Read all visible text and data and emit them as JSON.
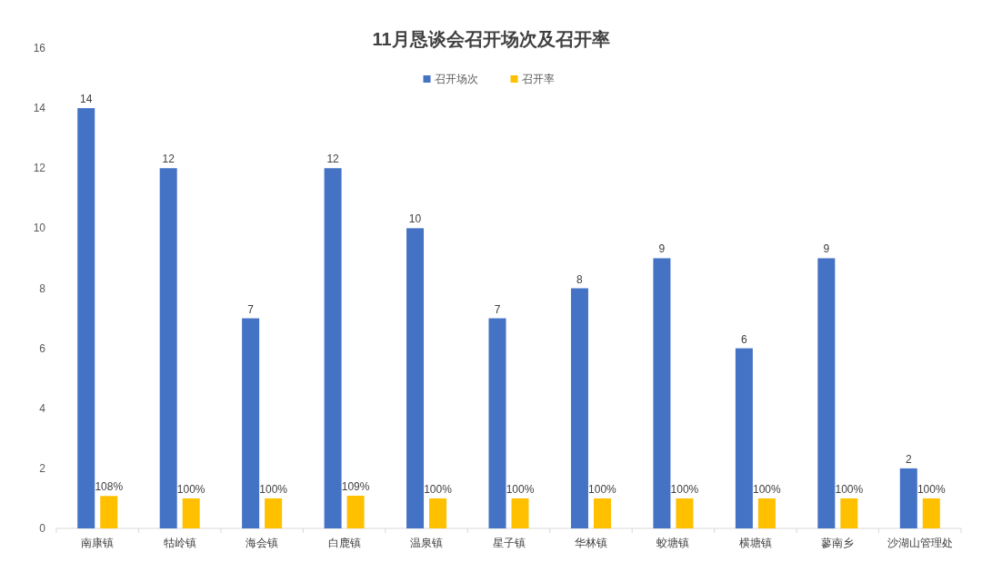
{
  "chart_data": {
    "type": "bar",
    "title": "11月恳谈会召开场次及召开率",
    "categories": [
      "南康镇",
      "牯岭镇",
      "海会镇",
      "白鹿镇",
      "温泉镇",
      "星子镇",
      "华林镇",
      "蛟塘镇",
      "横塘镇",
      "蓼南乡",
      "沙湖山管理处"
    ],
    "series": [
      {
        "name": "召开场次",
        "color": "#4472c4",
        "values": [
          14,
          12,
          7,
          12,
          10,
          7,
          8,
          9,
          6,
          9,
          2
        ],
        "value_labels": [
          "14",
          "12",
          "7",
          "12",
          "10",
          "7",
          "8",
          "9",
          "6",
          "9",
          "2"
        ]
      },
      {
        "name": "召开率",
        "color": "#ffc000",
        "values": [
          1.08,
          1.0,
          1.0,
          1.09,
          1.0,
          1.0,
          1.0,
          1.0,
          1.0,
          1.0,
          1.0
        ],
        "value_labels": [
          "108%",
          "100%",
          "100%",
          "109%",
          "100%",
          "100%",
          "100%",
          "100%",
          "100%",
          "100%",
          "100%"
        ]
      }
    ],
    "ylim": [
      0,
      16
    ],
    "yticks": [
      0,
      2,
      4,
      6,
      8,
      10,
      12,
      14,
      16
    ],
    "grid": false,
    "legend": "top"
  }
}
